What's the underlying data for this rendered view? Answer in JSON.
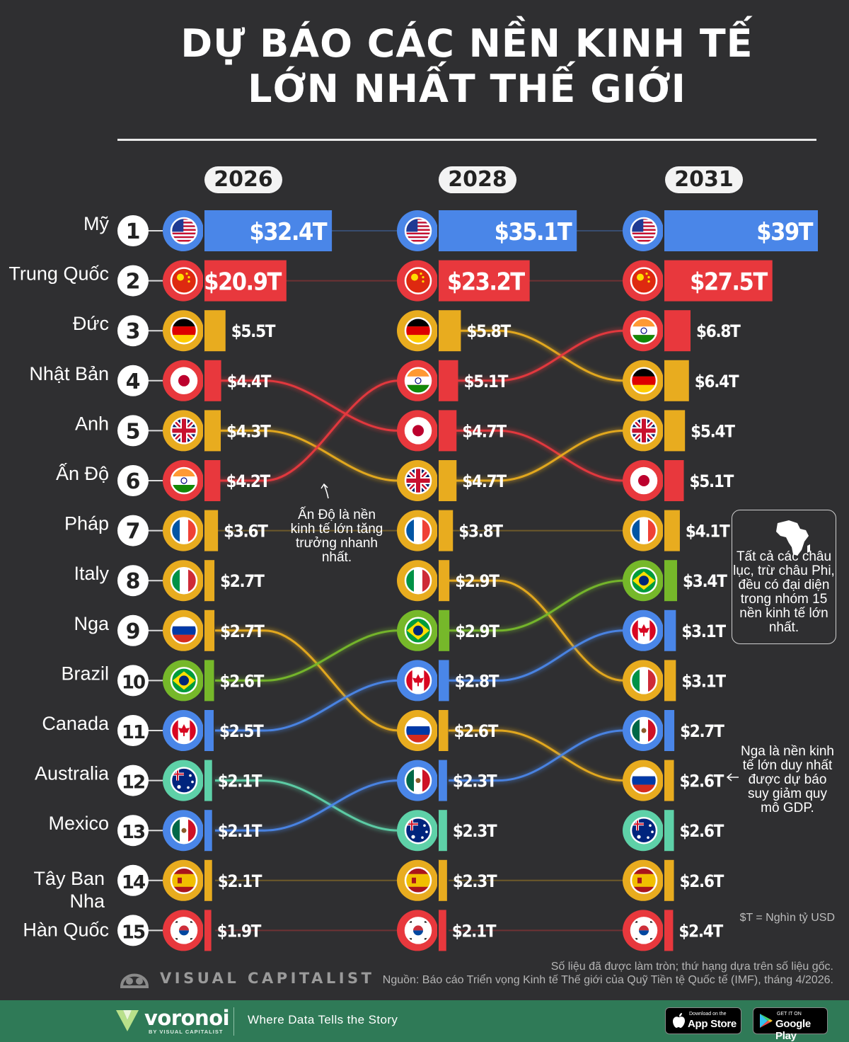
{
  "title": {
    "line1": "DỰ BÁO CÁC NỀN KINH TẾ",
    "line2": "LỚN NHẤT THẾ GIỚI"
  },
  "chart_data": {
    "type": "bump",
    "title": "DỰ BÁO CÁC NỀN KINH TẾ LỚN NHẤT THẾ GIỚI",
    "years": [
      "2026",
      "2028",
      "2031"
    ],
    "ranks": [
      1,
      2,
      3,
      4,
      5,
      6,
      7,
      8,
      9,
      10,
      11,
      12,
      13,
      14,
      15
    ],
    "countries": [
      {
        "key": "us",
        "name": "Mỹ",
        "color": "#4a86e8",
        "flag": "us-flag",
        "labels": [
          "$32.4T",
          "$35.1T",
          "$39T"
        ],
        "values": [
          32.4,
          35.1,
          39
        ],
        "ranks": [
          1,
          1,
          1
        ]
      },
      {
        "key": "cn",
        "name": "Trung Quốc",
        "color": "#e8383d",
        "flag": "china-flag",
        "labels": [
          "$20.9T",
          "$23.2T",
          "$27.5T"
        ],
        "values": [
          20.9,
          23.2,
          27.5
        ],
        "ranks": [
          2,
          2,
          2
        ]
      },
      {
        "key": "de",
        "name": "Đức",
        "color": "#e8ac1f",
        "flag": "germany-flag",
        "labels": [
          "$5.5T",
          "$5.8T",
          "$6.4T"
        ],
        "values": [
          5.5,
          5.8,
          6.4
        ],
        "ranks": [
          3,
          3,
          4
        ]
      },
      {
        "key": "jp",
        "name": "Nhật Bản",
        "color": "#e8383d",
        "flag": "japan-flag",
        "labels": [
          "$4.4T",
          "$4.7T",
          "$5.1T"
        ],
        "values": [
          4.4,
          4.7,
          5.1
        ],
        "ranks": [
          4,
          5,
          6
        ]
      },
      {
        "key": "uk",
        "name": "Anh",
        "color": "#e8ac1f",
        "flag": "uk-flag",
        "labels": [
          "$4.3T",
          "$4.7T",
          "$5.4T"
        ],
        "values": [
          4.3,
          4.7,
          5.4
        ],
        "ranks": [
          5,
          6,
          5
        ]
      },
      {
        "key": "in",
        "name": "Ấn Độ",
        "color": "#e8383d",
        "flag": "india-flag",
        "labels": [
          "$4.2T",
          "$5.1T",
          "$6.8T"
        ],
        "values": [
          4.2,
          5.1,
          6.8
        ],
        "ranks": [
          6,
          4,
          3
        ]
      },
      {
        "key": "fr",
        "name": "Pháp",
        "color": "#e8ac1f",
        "flag": "france-flag",
        "labels": [
          "$3.6T",
          "$3.8T",
          "$4.1T"
        ],
        "values": [
          3.6,
          3.8,
          4.1
        ],
        "ranks": [
          7,
          7,
          7
        ]
      },
      {
        "key": "it",
        "name": "Italy",
        "color": "#e8ac1f",
        "flag": "italy-flag",
        "labels": [
          "$2.7T",
          "$2.9T",
          "$3.1T"
        ],
        "values": [
          2.7,
          2.9,
          3.1
        ],
        "ranks": [
          8,
          8,
          10
        ]
      },
      {
        "key": "ru",
        "name": "Nga",
        "color": "#e8ac1f",
        "flag": "russia-flag",
        "labels": [
          "$2.7T",
          "$2.6T",
          "$2.6T"
        ],
        "values": [
          2.7,
          2.6,
          2.6
        ],
        "ranks": [
          9,
          11,
          12
        ]
      },
      {
        "key": "br",
        "name": "Brazil",
        "color": "#76b82a",
        "flag": "brazil-flag",
        "labels": [
          "$2.6T",
          "$2.9T",
          "$3.4T"
        ],
        "values": [
          2.6,
          2.9,
          3.4
        ],
        "ranks": [
          10,
          9,
          8
        ]
      },
      {
        "key": "ca",
        "name": "Canada",
        "color": "#4a86e8",
        "flag": "canada-flag",
        "labels": [
          "$2.5T",
          "$2.8T",
          "$3.1T"
        ],
        "values": [
          2.5,
          2.8,
          3.1
        ],
        "ranks": [
          11,
          10,
          9
        ]
      },
      {
        "key": "au",
        "name": "Australia",
        "color": "#5ed1a8",
        "flag": "australia-flag",
        "labels": [
          "$2.1T",
          "$2.3T",
          "$2.6T"
        ],
        "values": [
          2.1,
          2.3,
          2.6
        ],
        "ranks": [
          12,
          13,
          13
        ]
      },
      {
        "key": "mx",
        "name": "Mexico",
        "color": "#4a86e8",
        "flag": "mexico-flag",
        "labels": [
          "$2.1T",
          "$2.3T",
          "$2.7T"
        ],
        "values": [
          2.1,
          2.3,
          2.7
        ],
        "ranks": [
          13,
          12,
          11
        ]
      },
      {
        "key": "es",
        "name": "Tây Ban Nha",
        "color": "#e8ac1f",
        "flag": "spain-flag",
        "labels": [
          "$2.1T",
          "$2.3T",
          "$2.6T"
        ],
        "values": [
          2.1,
          2.3,
          2.6
        ],
        "ranks": [
          14,
          14,
          14
        ]
      },
      {
        "key": "kr",
        "name": "Hàn Quốc",
        "color": "#e8383d",
        "flag": "korea-flag",
        "labels": [
          "$1.9T",
          "$2.1T",
          "$2.4T"
        ],
        "values": [
          1.9,
          2.1,
          2.4
        ],
        "ranks": [
          15,
          15,
          15
        ]
      }
    ],
    "annotations": [
      "Ấn Độ là nền kinh tế lớn tăng trưởng nhanh nhất.",
      "Tất cả các châu lục, trừ châu Phi, đều có đại diện trong nhóm 15 nền kinh tế lớn nhất.",
      "Nga là nền kinh tế lớn duy nhất được dự báo suy giảm quy mô GDP."
    ],
    "unit_note": "$T = Nghìn tỷ USD"
  },
  "notes": {
    "india_lines": [
      "Ấn Độ là nền",
      "kinh tế lớn tăng",
      "trưởng nhanh",
      "nhất."
    ],
    "africa_lines": [
      "Tất cả các châu",
      "lục, trừ châu Phi,",
      "đều có đại diện",
      "trong nhóm 15",
      "nền kinh tế lớn",
      "nhất."
    ],
    "russia_lines": [
      "Nga là nền kinh",
      "tế lớn duy nhất",
      "được dự báo",
      "suy giảm quy",
      "mô GDP."
    ],
    "unit": "$T = Nghìn tỷ USD",
    "source1": "Số liệu đã được làm tròn; thứ hạng dựa trên số liệu gốc.",
    "source2": "Nguồn: Báo cáo Triển vọng Kinh tế Thế giới của Quỹ Tiền tệ Quốc tế (IMF), tháng 4/2026."
  },
  "brand": {
    "vc": "VISUAL CAPITALIST"
  },
  "footer": {
    "voronoi": "voronoi",
    "voronoi_sub": "BY VISUAL CAPITALIST",
    "tagline": "Where Data Tells the Story",
    "appstore_small": "Download on the",
    "appstore_big": "App Store",
    "gplay_small": "GET IT ON",
    "gplay_big": "Google Play"
  }
}
